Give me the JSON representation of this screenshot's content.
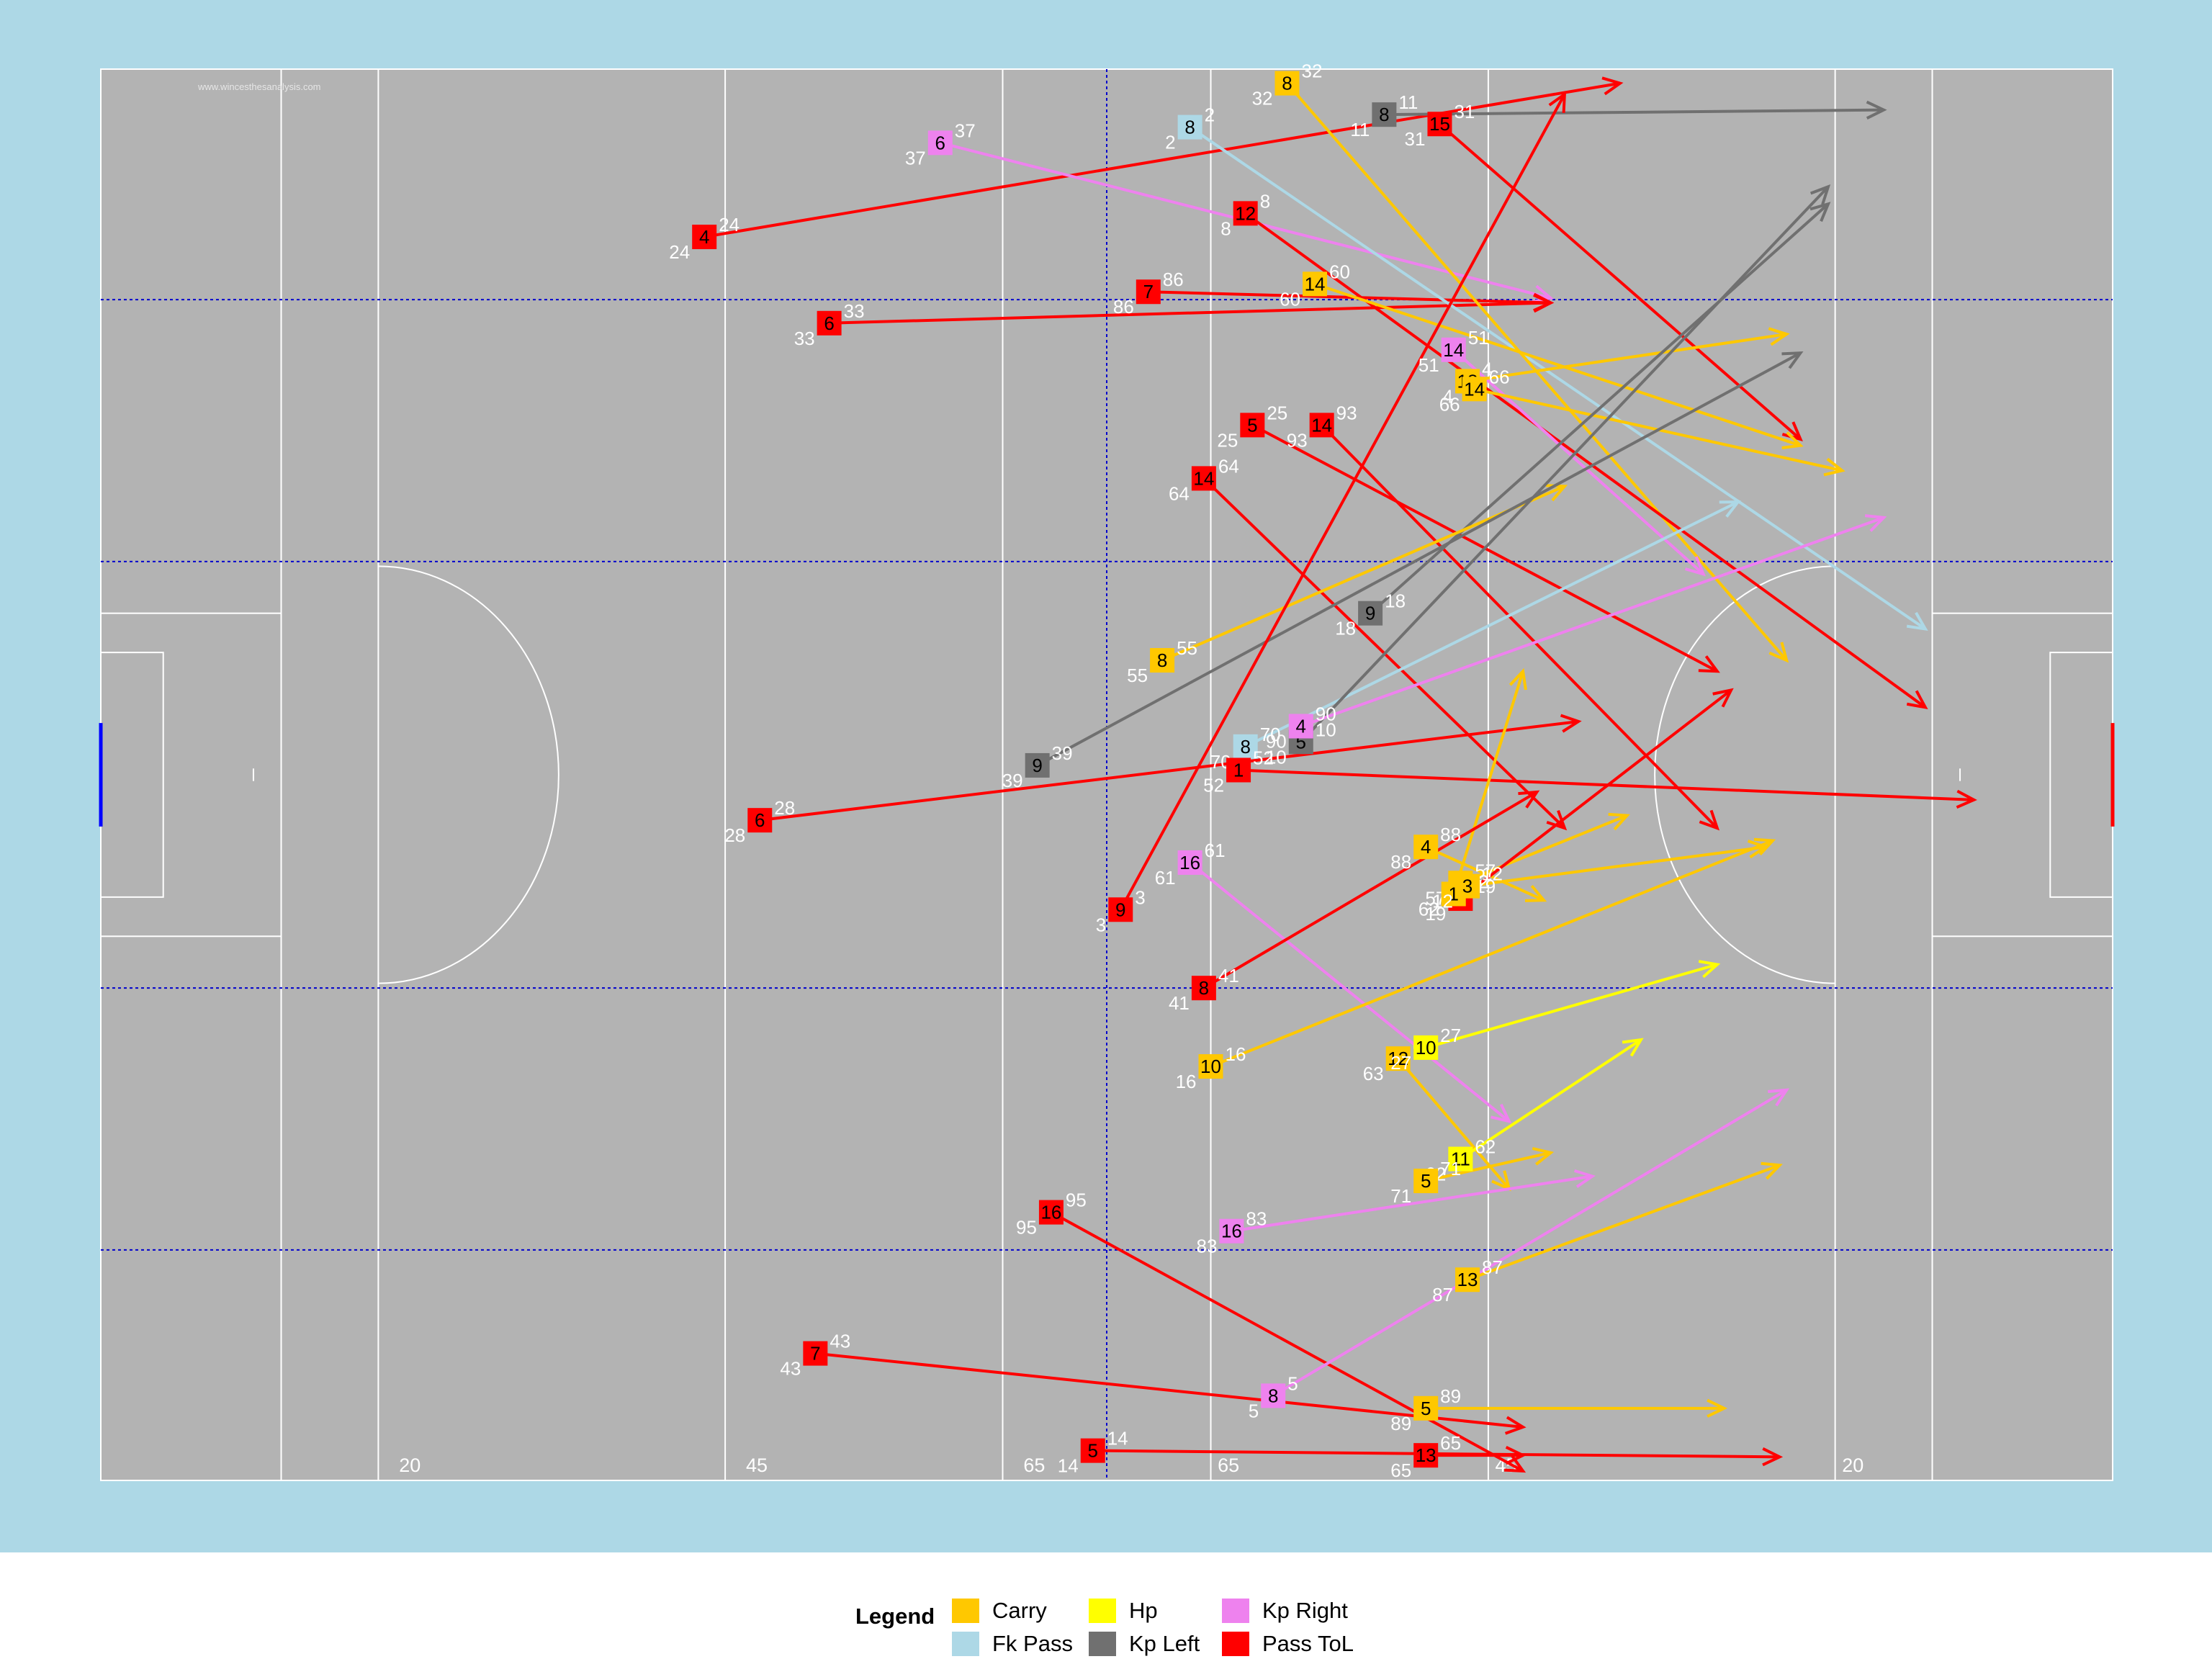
{
  "watermark": "www.wincesthesanalysis.com",
  "colors": {
    "background": "#add8e6",
    "pitch": "#b3b3b3",
    "lines": "#ffffff",
    "thirds": "#0000cd",
    "left_goal": "#0000ff",
    "right_goal": "#ff0000",
    "label_text": "#ffffff"
  },
  "chart_data": {
    "type": "scatter",
    "title": "",
    "xlabel": "",
    "ylabel": "",
    "xlim": [
      0,
      145
    ],
    "ylim": [
      0,
      90
    ],
    "grid": false,
    "legend_position": "bottom",
    "legend_title": "Legend",
    "pitch_line_labels": [
      {
        "x": 21.5,
        "text": "20"
      },
      {
        "x": 46.5,
        "text": "45"
      },
      {
        "x": 66.5,
        "text": "65"
      },
      {
        "x": 80.5,
        "text": "65"
      },
      {
        "x": 100.5,
        "text": "45"
      },
      {
        "x": 125.5,
        "text": "20"
      }
    ],
    "categories": [
      {
        "name": "Carry",
        "color": "#ffc800"
      },
      {
        "name": "Fk Pass",
        "color": "#add8e6"
      },
      {
        "name": "Hp",
        "color": "#ffff00"
      },
      {
        "name": "Kp Left",
        "color": "#707070"
      },
      {
        "name": "Kp Right",
        "color": "#ee82ee"
      },
      {
        "name": "Pass ToL",
        "color": "#ff0000"
      }
    ],
    "events": [
      {
        "cat": "Pass ToL",
        "player": "4",
        "minute": "24",
        "x": 43.5,
        "y": 79.3,
        "x2": 109.5,
        "y2": 89.1
      },
      {
        "cat": "Kp Right",
        "player": "6",
        "minute": "37",
        "x": 60.5,
        "y": 85.3,
        "x2": 104.5,
        "y2": 75.4
      },
      {
        "cat": "Pass ToL",
        "player": "6",
        "minute": "33",
        "x": 52.5,
        "y": 73.8,
        "x2": 104.5,
        "y2": 75.1
      },
      {
        "cat": "Pass ToL",
        "player": "7",
        "minute": "86",
        "x": 75.5,
        "y": 75.8,
        "x2": 104.5,
        "y2": 75.1
      },
      {
        "cat": "Fk Pass",
        "player": "8",
        "minute": "2",
        "x": 78.5,
        "y": 86.3,
        "x2": 131.5,
        "y2": 54.3
      },
      {
        "cat": "Carry",
        "player": "8",
        "minute": "32",
        "x": 85.5,
        "y": 89.1,
        "x2": 121.5,
        "y2": 52.3
      },
      {
        "cat": "Kp Left",
        "player": "8",
        "minute": "11",
        "x": 92.5,
        "y": 87.1,
        "x2": 128.5,
        "y2": 87.4
      },
      {
        "cat": "Pass ToL",
        "player": "15",
        "minute": "31",
        "x": 96.5,
        "y": 86.5,
        "x2": 122.5,
        "y2": 66.4
      },
      {
        "cat": "Pass ToL",
        "player": "12",
        "minute": "8",
        "x": 82.5,
        "y": 80.8,
        "x2": 131.5,
        "y2": 49.3
      },
      {
        "cat": "Carry",
        "player": "14",
        "minute": "60",
        "x": 87.5,
        "y": 76.3,
        "x2": 122.5,
        "y2": 66.0
      },
      {
        "cat": "Kp Right",
        "player": "14",
        "minute": "51",
        "x": 97.5,
        "y": 72.1,
        "x2": 115.5,
        "y2": 57.8
      },
      {
        "cat": "Carry",
        "player": "18",
        "minute": "4",
        "x": 98.5,
        "y": 70.1,
        "x2": 121.5,
        "y2": 73.1
      },
      {
        "cat": "Carry",
        "player": "14",
        "minute": "66",
        "x": 99.0,
        "y": 69.6,
        "x2": 125.5,
        "y2": 64.4
      },
      {
        "cat": "Pass ToL",
        "player": "5",
        "minute": "25",
        "x": 83.0,
        "y": 67.3,
        "x2": 116.5,
        "y2": 51.6
      },
      {
        "cat": "Pass ToL",
        "player": "14",
        "minute": "93",
        "x": 88.0,
        "y": 67.3,
        "x2": 116.5,
        "y2": 41.6
      },
      {
        "cat": "Pass ToL",
        "player": "14",
        "minute": "64",
        "x": 79.5,
        "y": 63.9,
        "x2": 105.5,
        "y2": 41.6
      },
      {
        "cat": "Kp Left",
        "player": "9",
        "minute": "18",
        "x": 91.5,
        "y": 55.3,
        "x2": 124.5,
        "y2": 81.4
      },
      {
        "cat": "Carry",
        "player": "8",
        "minute": "55",
        "x": 76.5,
        "y": 52.3,
        "x2": 105.5,
        "y2": 63.4
      },
      {
        "cat": "Kp Left",
        "player": "9",
        "minute": "39",
        "x": 67.5,
        "y": 45.6,
        "x2": 122.5,
        "y2": 71.9
      },
      {
        "cat": "Pass ToL",
        "player": "6",
        "minute": "28",
        "x": 47.5,
        "y": 42.1,
        "x2": 106.5,
        "y2": 48.4
      },
      {
        "cat": "Fk Pass",
        "player": "8",
        "minute": "70",
        "x": 82.5,
        "y": 46.8,
        "x2": 118.0,
        "y2": 62.4
      },
      {
        "cat": "Kp Left",
        "player": "5",
        "minute": "10",
        "x": 86.5,
        "y": 47.1,
        "x2": 124.5,
        "y2": 82.5
      },
      {
        "cat": "Kp Right",
        "player": "4",
        "minute": "90",
        "x": 86.5,
        "y": 48.1,
        "x2": 128.5,
        "y2": 61.4
      },
      {
        "cat": "Pass ToL",
        "player": "1",
        "minute": "52",
        "x": 82.0,
        "y": 45.3,
        "x2": 135.0,
        "y2": 43.4
      },
      {
        "cat": "Pass ToL",
        "player": "9",
        "minute": "3",
        "x": 73.5,
        "y": 36.4,
        "x2": 105.5,
        "y2": 88.4
      },
      {
        "cat": "Kp Right",
        "player": "16",
        "minute": "61",
        "x": 78.5,
        "y": 39.4,
        "x2": 101.5,
        "y2": 22.9
      },
      {
        "cat": "Carry",
        "player": "4",
        "minute": "88",
        "x": 95.5,
        "y": 40.4,
        "x2": 104.0,
        "y2": 37.0
      },
      {
        "cat": "Carry",
        "player": "3",
        "minute": "57",
        "x": 98.0,
        "y": 38.1,
        "x2": 110.0,
        "y2": 42.4
      },
      {
        "cat": "Pass ToL",
        "player": "3",
        "minute": "19",
        "x": 98.0,
        "y": 37.1,
        "x2": 117.5,
        "y2": 50.4
      },
      {
        "cat": "Carry",
        "player": "1",
        "minute": "62",
        "x": 97.5,
        "y": 37.4,
        "x2": 102.5,
        "y2": 51.6
      },
      {
        "cat": "Carry",
        "player": "3",
        "minute": "12",
        "x": 98.5,
        "y": 37.9,
        "x2": 120.0,
        "y2": 40.4
      },
      {
        "cat": "Pass ToL",
        "player": "8",
        "minute": "41",
        "x": 79.5,
        "y": 31.4,
        "x2": 103.5,
        "y2": 43.9
      },
      {
        "cat": "Carry",
        "player": "10",
        "minute": "16",
        "x": 80.0,
        "y": 26.4,
        "x2": 120.5,
        "y2": 40.8
      },
      {
        "cat": "Carry",
        "player": "12",
        "minute": "63",
        "x": 93.5,
        "y": 26.9,
        "x2": 101.5,
        "y2": 18.6
      },
      {
        "cat": "Hp",
        "player": "10",
        "minute": "27",
        "x": 95.5,
        "y": 27.6,
        "x2": 116.5,
        "y2": 32.9
      },
      {
        "cat": "Hp",
        "player": "11",
        "minute": "62",
        "x": 98.0,
        "y": 20.5,
        "x2": 111.0,
        "y2": 28.1
      },
      {
        "cat": "Carry",
        "player": "5",
        "minute": "71",
        "x": 95.5,
        "y": 19.1,
        "x2": 104.5,
        "y2": 20.9
      },
      {
        "cat": "Kp Right",
        "player": "16",
        "minute": "83",
        "x": 81.5,
        "y": 15.9,
        "x2": 107.5,
        "y2": 19.4
      },
      {
        "cat": "Pass ToL",
        "player": "16",
        "minute": "95",
        "x": 68.5,
        "y": 17.1,
        "x2": 102.5,
        "y2": 0.6
      },
      {
        "cat": "Kp Right",
        "player": "8",
        "minute": "5",
        "x": 84.5,
        "y": 5.4,
        "x2": 121.5,
        "y2": 24.9
      },
      {
        "cat": "Carry",
        "player": "13",
        "minute": "87",
        "x": 98.5,
        "y": 12.8,
        "x2": 121.0,
        "y2": 20.1
      },
      {
        "cat": "Pass ToL",
        "player": "7",
        "minute": "43",
        "x": 51.5,
        "y": 8.1,
        "x2": 102.5,
        "y2": 3.4
      },
      {
        "cat": "Carry",
        "player": "5",
        "minute": "89",
        "x": 95.5,
        "y": 4.6,
        "x2": 117.0,
        "y2": 4.6
      },
      {
        "cat": "Pass ToL",
        "player": "5",
        "minute": "14",
        "x": 71.5,
        "y": 1.9,
        "x2": 121.0,
        "y2": 1.5
      },
      {
        "cat": "Pass ToL",
        "player": "13",
        "minute": "65",
        "x": 95.5,
        "y": 1.6,
        "x2": 102.5,
        "y2": 1.6
      }
    ]
  }
}
